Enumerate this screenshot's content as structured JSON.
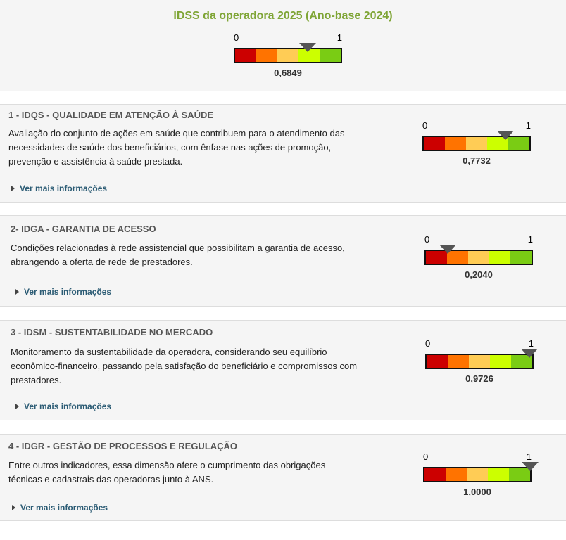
{
  "header": {
    "title": "IDSS da operadora 2025 (Ano-base 2024)",
    "gauge": {
      "min_label": "0",
      "max_label": "1",
      "value": 0.6849,
      "value_text": "0,6849"
    }
  },
  "scale_colors": [
    "#cc0000",
    "#ff7300",
    "#ffcc55",
    "#ccff00",
    "#7acc14"
  ],
  "pointer_color": "#555555",
  "title_color": "#7fa536",
  "dimensions": [
    {
      "title": "1 - IDQS - QUALIDADE EM ATENÇÃO À SAÚDE",
      "description": "Avaliação do conjunto de ações em saúde que contribuem para o atendimento das necessidades de saúde dos beneficiários, com ênfase nas ações de promoção, prevenção e assistência à saúde prestada.",
      "more_label": "Ver mais informações",
      "gauge": {
        "min_label": "0",
        "max_label": "1",
        "value": 0.7732,
        "value_text": "0,7732"
      }
    },
    {
      "title": "2- IDGA - GARANTIA DE ACESSO",
      "description": "Condições relacionadas à rede assistencial que possibilitam a garantia de acesso, abrangendo a oferta de rede de prestadores.",
      "more_label": "Ver mais informações",
      "gauge": {
        "min_label": "0",
        "max_label": "1",
        "value": 0.204,
        "value_text": "0,2040"
      }
    },
    {
      "title": "3 - IDSM - SUSTENTABILIDADE NO MERCADO",
      "description": "Monitoramento da sustentabilidade da operadora, considerando seu equilíbrio econômico-financeiro, passando pela satisfação do beneficiário e compromissos com prestadores.",
      "more_label": "Ver mais informações",
      "gauge": {
        "min_label": "0",
        "max_label": "1",
        "value": 0.9726,
        "value_text": "0,9726"
      }
    },
    {
      "title": "4 - IDGR - GESTÃO DE PROCESSOS E REGULAÇÃO",
      "description": "Entre outros indicadores, essa dimensão afere o cumprimento das obrigações técnicas e cadastrais das operadoras junto à ANS.",
      "more_label": "Ver mais informações",
      "gauge": {
        "min_label": "0",
        "max_label": "1",
        "value": 1.0,
        "value_text": "1,0000"
      }
    }
  ]
}
